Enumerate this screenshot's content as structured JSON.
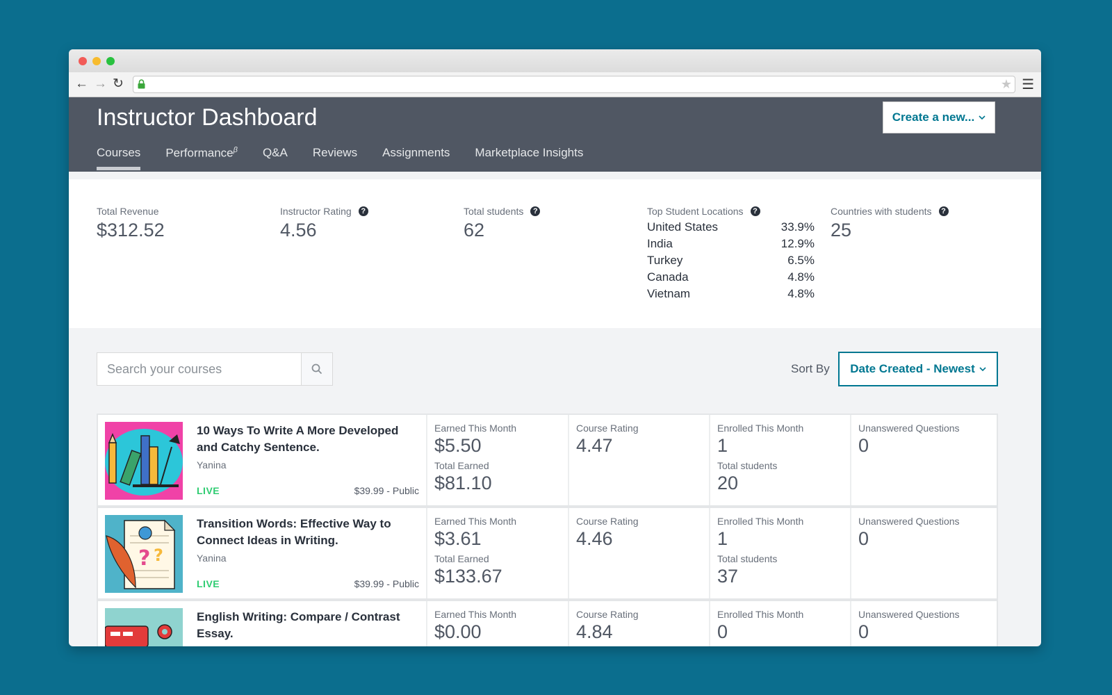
{
  "header": {
    "title": "Instructor Dashboard",
    "create_button": "Create a new...",
    "tabs": [
      {
        "label": "Courses",
        "active": true
      },
      {
        "label": "Performance",
        "sup": "β"
      },
      {
        "label": "Q&A"
      },
      {
        "label": "Reviews"
      },
      {
        "label": "Assignments"
      },
      {
        "label": "Marketplace Insights"
      }
    ]
  },
  "stats": {
    "revenue": {
      "label": "Total Revenue",
      "value": "$312.52"
    },
    "rating": {
      "label": "Instructor Rating",
      "value": "4.56"
    },
    "students": {
      "label": "Total students",
      "value": "62"
    },
    "locations": {
      "label": "Top Student Locations",
      "items": [
        {
          "country": "United States",
          "pct": "33.9%"
        },
        {
          "country": "India",
          "pct": "12.9%"
        },
        {
          "country": "Turkey",
          "pct": "6.5%"
        },
        {
          "country": "Canada",
          "pct": "4.8%"
        },
        {
          "country": "Vietnam",
          "pct": "4.8%"
        }
      ]
    },
    "countries": {
      "label": "Countries with students",
      "value": "25"
    }
  },
  "controls": {
    "search_placeholder": "Search your courses",
    "sort_label": "Sort By",
    "sort_value": "Date Created - Newest"
  },
  "labels": {
    "earned_month": "Earned This Month",
    "total_earned": "Total Earned",
    "course_rating": "Course Rating",
    "enrolled_month": "Enrolled This Month",
    "total_students": "Total students",
    "unanswered": "Unanswered Questions"
  },
  "courses": [
    {
      "title": "10 Ways To Write A More Developed and Catchy Sentence.",
      "author": "Yanina",
      "status": "LIVE",
      "price": "$39.99 - Public",
      "earned_month": "$5.50",
      "total_earned": "$81.10",
      "rating": "4.47",
      "enrolled_month": "1",
      "total_students": "20",
      "unanswered": "0"
    },
    {
      "title": "Transition Words: Effective Way to Connect Ideas in Writing.",
      "author": "Yanina",
      "status": "LIVE",
      "price": "$39.99 - Public",
      "earned_month": "$3.61",
      "total_earned": "$133.67",
      "rating": "4.46",
      "enrolled_month": "1",
      "total_students": "37",
      "unanswered": "0"
    },
    {
      "title": "English Writing: Compare / Contrast Essay.",
      "author": "",
      "status": "",
      "price": "",
      "earned_month": "$0.00",
      "total_earned": "",
      "rating": "4.84",
      "enrolled_month": "0",
      "total_students": "",
      "unanswered": "0"
    }
  ],
  "colors": {
    "accent": "#007791",
    "header_bg": "#505763",
    "live": "#2ecc71",
    "desktop_bg": "#0b6e8e"
  }
}
